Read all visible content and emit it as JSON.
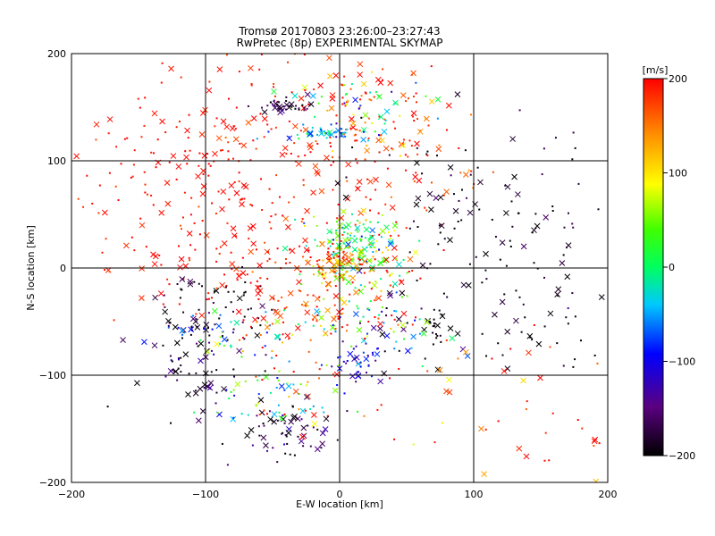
{
  "chart_data": {
    "type": "scatter",
    "title": "Tromsø 20170803 23:26:00–23:27:43",
    "subtitle": "RwPretec (8p) EXPERIMENTAL SKYMAP",
    "xlabel": "E-W location [km]",
    "ylabel": "N-S location [km]",
    "xlim": [
      -200,
      200
    ],
    "ylim": [
      -200,
      200
    ],
    "x_ticks": [
      -200,
      -100,
      0,
      100,
      200
    ],
    "y_ticks": [
      -200,
      -100,
      0,
      100,
      200
    ],
    "grid": true,
    "markers": [
      "dot",
      "x"
    ],
    "colorbar": {
      "label": "[m/s]",
      "range": [
        -200,
        200
      ],
      "ticks": [
        200,
        100,
        0,
        -100,
        -200
      ],
      "colormap": "rainbow (black-purple-blue-cyan-green-yellow-red)"
    },
    "clusters": [
      {
        "x": -55,
        "y": 5,
        "sx": 55,
        "sy": 25,
        "n": 140,
        "v": 190,
        "vs": 15
      },
      {
        "x": -120,
        "y": 100,
        "sx": 55,
        "sy": 45,
        "n": 150,
        "v": 195,
        "vs": 10
      },
      {
        "x": -20,
        "y": 110,
        "sx": 45,
        "sy": 50,
        "n": 150,
        "v": 190,
        "vs": 15
      },
      {
        "x": 40,
        "y": 120,
        "sx": 35,
        "sy": 40,
        "n": 90,
        "v": 170,
        "vs": 40
      },
      {
        "x": 15,
        "y": 20,
        "sx": 18,
        "sy": 18,
        "n": 160,
        "v": 20,
        "vs": 60
      },
      {
        "x": -2,
        "y": 2,
        "sx": 14,
        "sy": 10,
        "n": 90,
        "v": 130,
        "vs": 60
      },
      {
        "x": -40,
        "y": 152,
        "sx": 10,
        "sy": 4,
        "n": 40,
        "v": -180,
        "vs": 20
      },
      {
        "x": -10,
        "y": 125,
        "sx": 18,
        "sy": 4,
        "n": 50,
        "v": -40,
        "vs": 40
      },
      {
        "x": 15,
        "y": 155,
        "sx": 35,
        "sy": 15,
        "n": 50,
        "v": 20,
        "vs": 100
      },
      {
        "x": 90,
        "y": 40,
        "sx": 35,
        "sy": 40,
        "n": 80,
        "v": -190,
        "vs": 15
      },
      {
        "x": 160,
        "y": 40,
        "sx": 20,
        "sy": 40,
        "n": 30,
        "v": -190,
        "vs": 15
      },
      {
        "x": -100,
        "y": -40,
        "sx": 25,
        "sy": 20,
        "n": 70,
        "v": -190,
        "vs": 15
      },
      {
        "x": -110,
        "y": -100,
        "sx": 20,
        "sy": 20,
        "n": 50,
        "v": -180,
        "vs": 30
      },
      {
        "x": -80,
        "y": -60,
        "sx": 30,
        "sy": 15,
        "n": 60,
        "v": -40,
        "vs": 100
      },
      {
        "x": -30,
        "y": -55,
        "sx": 30,
        "sy": 25,
        "n": 60,
        "v": 180,
        "vs": 30
      },
      {
        "x": -40,
        "y": -150,
        "sx": 20,
        "sy": 12,
        "n": 60,
        "v": -180,
        "vs": 30
      },
      {
        "x": -40,
        "y": -120,
        "sx": 25,
        "sy": 15,
        "n": 50,
        "v": 0,
        "vs": 100
      },
      {
        "x": 15,
        "y": -90,
        "sx": 10,
        "sy": 10,
        "n": 40,
        "v": -120,
        "vs": 30
      },
      {
        "x": 70,
        "y": -55,
        "sx": 6,
        "sy": 12,
        "n": 25,
        "v": -195,
        "vs": 10
      },
      {
        "x": 40,
        "y": -60,
        "sx": 25,
        "sy": 25,
        "n": 40,
        "v": -100,
        "vs": 100
      },
      {
        "x": 140,
        "y": -60,
        "sx": 30,
        "sy": 25,
        "n": 30,
        "v": -190,
        "vs": 15
      },
      {
        "x": 60,
        "y": -120,
        "sx": 60,
        "sy": 50,
        "n": 50,
        "v": 170,
        "vs": 40
      },
      {
        "x": 20,
        "y": -40,
        "sx": 25,
        "sy": 15,
        "n": 50,
        "v": 60,
        "vs": 100
      },
      {
        "x": 150,
        "y": -150,
        "sx": 40,
        "sy": 40,
        "n": 20,
        "v": 190,
        "vs": 20
      }
    ]
  }
}
